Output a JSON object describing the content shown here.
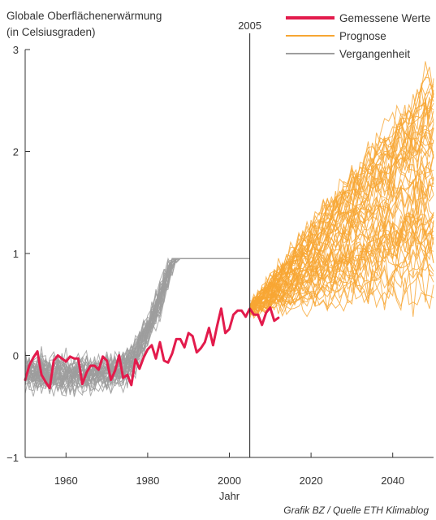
{
  "chart_data": {
    "type": "line",
    "title": "Globale Oberflächenerwärmung",
    "subtitle": "(in Celsiusgraden)",
    "xlabel": "Jahr",
    "ylabel": "",
    "xlim": [
      1950,
      2050
    ],
    "ylim": [
      -1,
      3
    ],
    "x_ticks": [
      1960,
      1980,
      2000,
      2020,
      2040
    ],
    "y_ticks": [
      3,
      2,
      1,
      0,
      -1
    ],
    "x_tick_labels": [
      "1960",
      "1980",
      "2000",
      "2020",
      "2040"
    ],
    "y_tick_labels": [
      "3",
      "2",
      "1",
      "0",
      "−1"
    ],
    "grid": false,
    "legend_position": "top-right",
    "annotation": {
      "x": 2005,
      "label": "2005"
    },
    "credit": "Grafik BZ / Quelle ETH Klimablog",
    "colors": {
      "measured": "#e31b4c",
      "forecast": "#f7a633",
      "past": "#9e9e9e",
      "axis": "#333333"
    },
    "series": [
      {
        "name": "Gemessene Werte",
        "role": "measured",
        "x": [
          1950,
          1951,
          1952,
          1953,
          1954,
          1955,
          1956,
          1957,
          1958,
          1959,
          1960,
          1961,
          1962,
          1963,
          1964,
          1965,
          1966,
          1967,
          1968,
          1969,
          1970,
          1971,
          1972,
          1973,
          1974,
          1975,
          1976,
          1977,
          1978,
          1979,
          1980,
          1981,
          1982,
          1983,
          1984,
          1985,
          1986,
          1987,
          1988,
          1989,
          1990,
          1991,
          1992,
          1993,
          1994,
          1995,
          1996,
          1997,
          1998,
          1999,
          2000,
          2001,
          2002,
          2003,
          2004,
          2005,
          2006,
          2007,
          2008,
          2009,
          2010,
          2011,
          2012
        ],
        "y": [
          -0.24,
          -0.1,
          -0.02,
          0.04,
          -0.19,
          -0.26,
          -0.32,
          -0.05,
          0.0,
          -0.03,
          -0.06,
          -0.01,
          -0.03,
          -0.03,
          -0.28,
          -0.17,
          -0.1,
          -0.1,
          -0.14,
          -0.01,
          -0.05,
          -0.24,
          -0.15,
          0.0,
          -0.22,
          -0.19,
          -0.29,
          -0.04,
          -0.13,
          -0.02,
          0.06,
          0.1,
          -0.03,
          0.13,
          -0.05,
          -0.07,
          0.02,
          0.16,
          0.16,
          0.08,
          0.22,
          0.19,
          0.03,
          0.07,
          0.13,
          0.27,
          0.1,
          0.29,
          0.46,
          0.22,
          0.26,
          0.4,
          0.44,
          0.44,
          0.38,
          0.46,
          0.4,
          0.4,
          0.3,
          0.42,
          0.47,
          0.34,
          0.37
        ]
      },
      {
        "name": "Prognose",
        "role": "forecast",
        "x_range": [
          2005,
          2050
        ],
        "start": 0.45,
        "end_range": [
          0.65,
          2.8
        ],
        "runs": 60
      },
      {
        "name": "Vergangenheit",
        "role": "past",
        "x_range": [
          1950,
          2005
        ],
        "spread": [
          -0.6,
          0.95
        ],
        "runs": 40
      }
    ]
  }
}
